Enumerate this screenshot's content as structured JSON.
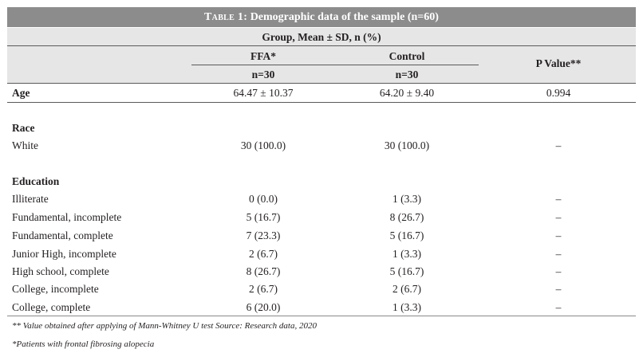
{
  "table": {
    "title_prefix": "Table 1:",
    "title_rest": " Demographic data of the sample (n=60)",
    "group_header": "Group, Mean ± SD, n (%)",
    "col_ffa": "FFA*",
    "col_control": "Control",
    "col_pvalue": "P Value**",
    "n_ffa": "n=30",
    "n_control": "n=30",
    "age": {
      "label": "Age",
      "ffa": "64.47 ± 10.37",
      "control": "64.20 ± 9.40",
      "p": "0.994"
    },
    "race": {
      "header": "Race",
      "rows": [
        {
          "label": "White",
          "ffa": "30 (100.0)",
          "control": "30 (100.0)",
          "p": "–"
        }
      ]
    },
    "education": {
      "header": "Education",
      "rows": [
        {
          "label": "Illiterate",
          "ffa": "0 (0.0)",
          "control": "1 (3.3)",
          "p": "–"
        },
        {
          "label": "Fundamental, incomplete",
          "ffa": "5 (16.7)",
          "control": "8 (26.7)",
          "p": "–"
        },
        {
          "label": "Fundamental, complete",
          "ffa": "7 (23.3)",
          "control": "5 (16.7)",
          "p": "–"
        },
        {
          "label": "Junior High, incomplete",
          "ffa": "2 (6.7)",
          "control": "1 (3.3)",
          "p": "–"
        },
        {
          "label": "High school, complete",
          "ffa": "8 (26.7)",
          "control": "5 (16.7)",
          "p": "–"
        },
        {
          "label": "College, incomplete",
          "ffa": "2 (6.7)",
          "control": "2 (6.7)",
          "p": "–"
        },
        {
          "label": "College, complete",
          "ffa": "6 (20.0)",
          "control": "1 (3.3)",
          "p": "–"
        }
      ]
    },
    "footnote_1": "** Value obtained after applying of Mann-Whitney U test Source: Research data, 2020",
    "footnote_2": "*Patients with frontal fibrosing alopecia"
  }
}
